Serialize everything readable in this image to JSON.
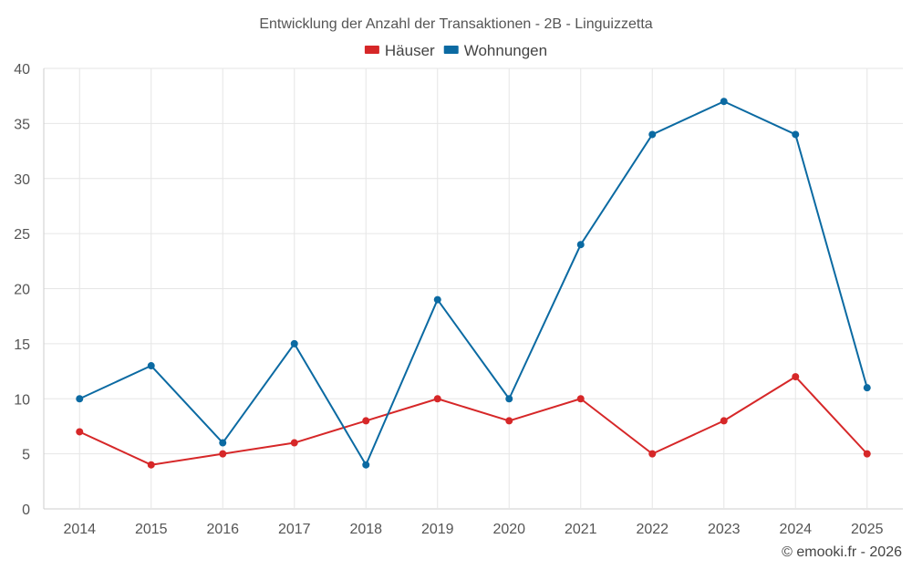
{
  "chart_data": {
    "type": "line",
    "title": "Entwicklung der Anzahl der Transaktionen - 2B - Linguizzetta",
    "categories": [
      "2014",
      "2015",
      "2016",
      "2017",
      "2018",
      "2019",
      "2020",
      "2021",
      "2022",
      "2023",
      "2024",
      "2025"
    ],
    "series": [
      {
        "name": "Häuser",
        "color": "#d62728",
        "values": [
          7,
          4,
          5,
          6,
          8,
          10,
          8,
          10,
          5,
          8,
          12,
          5
        ]
      },
      {
        "name": "Wohnungen",
        "color": "#0b6aa2",
        "values": [
          10,
          13,
          6,
          15,
          4,
          19,
          10,
          24,
          34,
          37,
          34,
          11
        ]
      }
    ],
    "ylim": [
      0,
      40
    ],
    "yticks": [
      0,
      5,
      10,
      15,
      20,
      25,
      30,
      35,
      40
    ],
    "xlabel": "",
    "ylabel": "",
    "grid": true,
    "legend": "top-center"
  },
  "credit": "© emooki.fr - 2026"
}
